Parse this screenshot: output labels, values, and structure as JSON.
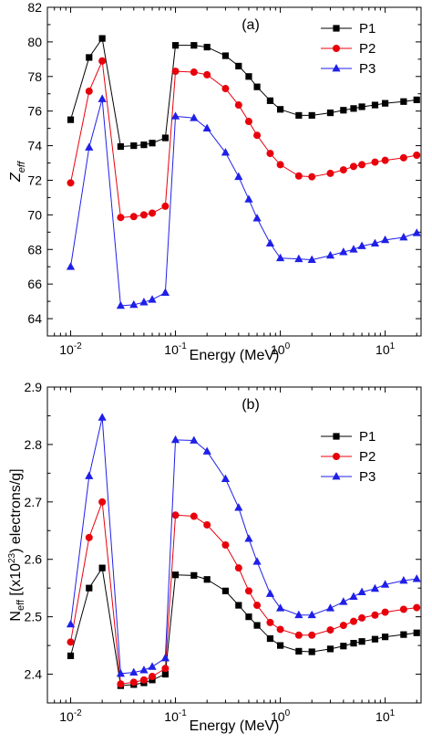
{
  "chart_data": [
    {
      "type": "line",
      "panel_label": "(a)",
      "xlabel": "Energy (MeV)",
      "ylabel_main": "Z",
      "ylabel_sub": "eff",
      "xscale": "log",
      "xlim": [
        0.006,
        22
      ],
      "ylim": [
        63,
        82
      ],
      "x_ticks": [
        0.01,
        0.1,
        1,
        10
      ],
      "x_tick_labels": [
        {
          "base": "10",
          "exp": "-2"
        },
        {
          "base": "10",
          "exp": "-1"
        },
        {
          "base": "10",
          "exp": "0"
        },
        {
          "base": "10",
          "exp": "1"
        }
      ],
      "y_ticks": [
        64,
        66,
        68,
        70,
        72,
        74,
        76,
        78,
        80,
        82
      ],
      "y_tick_labels": [
        "64",
        "66",
        "68",
        "70",
        "72",
        "74",
        "76",
        "78",
        "80",
        "82"
      ],
      "legend_position": "top-right",
      "x": [
        0.01,
        0.015,
        0.02,
        0.03,
        0.04,
        0.05,
        0.06,
        0.08,
        0.1,
        0.15,
        0.2,
        0.3,
        0.4,
        0.5,
        0.6,
        0.8,
        1.0,
        1.5,
        2.0,
        3.0,
        4.0,
        5.0,
        6.0,
        8.0,
        10.0,
        15.0,
        20.0
      ],
      "series": [
        {
          "name": "P1",
          "color": "#000000",
          "marker": "square",
          "values": [
            75.5,
            79.1,
            80.2,
            73.95,
            74.0,
            74.05,
            74.15,
            74.45,
            79.8,
            79.8,
            79.7,
            79.2,
            78.6,
            78.0,
            77.4,
            76.6,
            76.1,
            75.75,
            75.75,
            75.9,
            76.05,
            76.15,
            76.25,
            76.35,
            76.45,
            76.55,
            76.65
          ]
        },
        {
          "name": "P2",
          "color": "#e8000b",
          "marker": "circle",
          "values": [
            71.85,
            77.15,
            78.9,
            69.85,
            69.9,
            70.0,
            70.1,
            70.5,
            78.3,
            78.25,
            78.1,
            77.3,
            76.35,
            75.4,
            74.6,
            73.55,
            72.9,
            72.25,
            72.2,
            72.4,
            72.6,
            72.8,
            72.9,
            73.05,
            73.15,
            73.3,
            73.45
          ]
        },
        {
          "name": "P3",
          "color": "#1f1fe8",
          "marker": "triangle",
          "values": [
            67.0,
            73.9,
            76.7,
            64.75,
            64.8,
            64.95,
            65.1,
            65.5,
            75.7,
            75.6,
            75.0,
            73.6,
            72.2,
            70.9,
            69.8,
            68.35,
            67.5,
            67.45,
            67.4,
            67.65,
            67.85,
            68.0,
            68.2,
            68.35,
            68.55,
            68.7,
            68.95
          ]
        }
      ]
    },
    {
      "type": "line",
      "panel_label": "(b)",
      "xlabel": "Energy (MeV)",
      "ylabel_pre": "N",
      "ylabel_pre_sub": "eff",
      "ylabel_mid": " [(x10",
      "ylabel_sup": "23",
      "ylabel_post": ") electrons/g]",
      "xscale": "log",
      "xlim": [
        0.006,
        22
      ],
      "ylim": [
        2.35,
        2.9
      ],
      "x_ticks": [
        0.01,
        0.1,
        1,
        10
      ],
      "x_tick_labels": [
        {
          "base": "10",
          "exp": "-2"
        },
        {
          "base": "10",
          "exp": "-1"
        },
        {
          "base": "10",
          "exp": "0"
        },
        {
          "base": "10",
          "exp": "1"
        }
      ],
      "y_ticks": [
        2.4,
        2.5,
        2.6,
        2.7,
        2.8,
        2.9
      ],
      "y_tick_labels": [
        "2.4",
        "2.5",
        "2.6",
        "2.7",
        "2.8",
        "2.9"
      ],
      "legend_position": "top-right",
      "x": [
        0.01,
        0.015,
        0.02,
        0.03,
        0.04,
        0.05,
        0.06,
        0.08,
        0.1,
        0.15,
        0.2,
        0.3,
        0.4,
        0.5,
        0.6,
        0.8,
        1.0,
        1.5,
        2.0,
        3.0,
        4.0,
        5.0,
        6.0,
        8.0,
        10.0,
        15.0,
        20.0
      ],
      "series": [
        {
          "name": "P1",
          "color": "#000000",
          "marker": "square",
          "values": [
            2.432,
            2.55,
            2.585,
            2.38,
            2.382,
            2.385,
            2.39,
            2.4,
            2.573,
            2.572,
            2.565,
            2.545,
            2.52,
            2.5,
            2.485,
            2.462,
            2.45,
            2.44,
            2.439,
            2.444,
            2.449,
            2.454,
            2.457,
            2.461,
            2.465,
            2.469,
            2.472
          ]
        },
        {
          "name": "P2",
          "color": "#e8000b",
          "marker": "circle",
          "values": [
            2.456,
            2.638,
            2.7,
            2.383,
            2.386,
            2.39,
            2.396,
            2.41,
            2.677,
            2.675,
            2.66,
            2.625,
            2.585,
            2.545,
            2.52,
            2.49,
            2.478,
            2.468,
            2.468,
            2.477,
            2.485,
            2.492,
            2.498,
            2.503,
            2.508,
            2.513,
            2.516
          ]
        },
        {
          "name": "P3",
          "color": "#1f1fe8",
          "marker": "triangle",
          "values": [
            2.487,
            2.745,
            2.847,
            2.401,
            2.403,
            2.407,
            2.413,
            2.428,
            2.808,
            2.807,
            2.788,
            2.74,
            2.69,
            2.636,
            2.596,
            2.54,
            2.515,
            2.503,
            2.503,
            2.515,
            2.526,
            2.535,
            2.543,
            2.549,
            2.556,
            2.563,
            2.566
          ]
        }
      ]
    }
  ]
}
